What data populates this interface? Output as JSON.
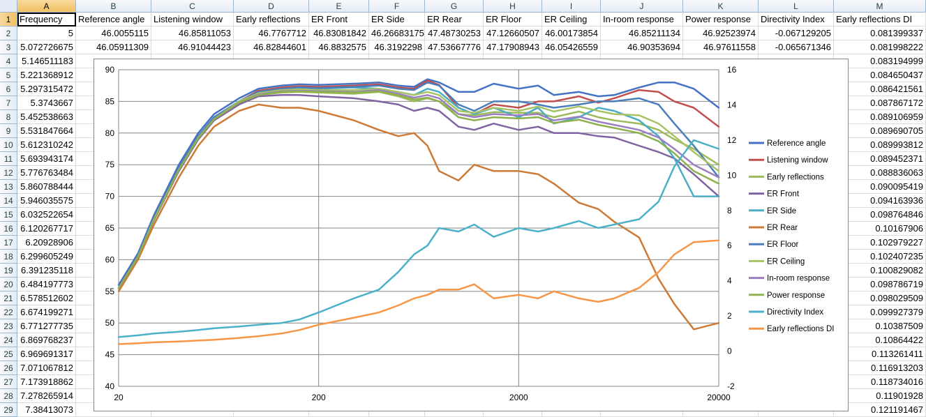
{
  "spreadsheet": {
    "columns": [
      "A",
      "B",
      "C",
      "D",
      "E",
      "F",
      "G",
      "H",
      "I",
      "J",
      "K",
      "L",
      "M"
    ],
    "active_column": "A",
    "active_row": 1,
    "rows": [
      {
        "n": "1",
        "cells": [
          "Frequency",
          "Reference angle",
          "Listening window",
          "Early reflections",
          "ER Front",
          "ER Side",
          "ER Rear",
          "ER Floor",
          "ER Ceiling",
          "In-room response",
          "Power response",
          "Directivity Index",
          "Early reflections DI"
        ]
      },
      {
        "n": "2",
        "cells": [
          "5",
          "46.0055115",
          "46.85811053",
          "46.7767712",
          "46.83081842",
          "46.26683175",
          "47.48730253",
          "47.12660507",
          "46.00173854",
          "46.85211134",
          "46.92523974",
          "-0.067129205",
          "0.081399337"
        ]
      },
      {
        "n": "3",
        "cells": [
          "5.072726675",
          "46.05911309",
          "46.91044423",
          "46.82844601",
          "46.8832575",
          "46.3192298",
          "47.53667776",
          "47.17908943",
          "46.05426559",
          "46.90353694",
          "46.97611558",
          "-0.065671346",
          "0.081998222"
        ]
      },
      {
        "n": "4",
        "cells": [
          "5.146511183",
          "",
          "",
          "",
          "",
          "",
          "",
          "",
          "",
          "",
          "",
          "",
          "0.083194999"
        ]
      },
      {
        "n": "5",
        "cells": [
          "5.221368912",
          "",
          "",
          "",
          "",
          "",
          "",
          "",
          "",
          "",
          "",
          "",
          "0.084650437"
        ]
      },
      {
        "n": "6",
        "cells": [
          "5.297315472",
          "",
          "",
          "",
          "",
          "",
          "",
          "",
          "",
          "",
          "",
          "",
          "0.086421561"
        ]
      },
      {
        "n": "7",
        "cells": [
          "5.3743667",
          "",
          "",
          "",
          "",
          "",
          "",
          "",
          "",
          "",
          "",
          "",
          "0.087867172"
        ]
      },
      {
        "n": "8",
        "cells": [
          "5.452538663",
          "",
          "",
          "",
          "",
          "",
          "",
          "",
          "",
          "",
          "",
          "",
          "0.089106959"
        ]
      },
      {
        "n": "9",
        "cells": [
          "5.531847664",
          "",
          "",
          "",
          "",
          "",
          "",
          "",
          "",
          "",
          "",
          "",
          "0.089690705"
        ]
      },
      {
        "n": "10",
        "cells": [
          "5.612310242",
          "",
          "",
          "",
          "",
          "",
          "",
          "",
          "",
          "",
          "",
          "",
          "0.089993812"
        ]
      },
      {
        "n": "11",
        "cells": [
          "5.693943174",
          "",
          "",
          "",
          "",
          "",
          "",
          "",
          "",
          "",
          "",
          "",
          "0.089452371"
        ]
      },
      {
        "n": "12",
        "cells": [
          "5.776763484",
          "",
          "",
          "",
          "",
          "",
          "",
          "",
          "",
          "",
          "",
          "",
          "0.088836063"
        ]
      },
      {
        "n": "13",
        "cells": [
          "5.860788444",
          "",
          "",
          "",
          "",
          "",
          "",
          "",
          "",
          "",
          "",
          "",
          "0.090095419"
        ]
      },
      {
        "n": "14",
        "cells": [
          "5.946035575",
          "",
          "",
          "",
          "",
          "",
          "",
          "",
          "",
          "",
          "",
          "",
          "0.094163936"
        ]
      },
      {
        "n": "15",
        "cells": [
          "6.032522654",
          "",
          "",
          "",
          "",
          "",
          "",
          "",
          "",
          "",
          "",
          "",
          "0.098764846"
        ]
      },
      {
        "n": "16",
        "cells": [
          "6.120267717",
          "",
          "",
          "",
          "",
          "",
          "",
          "",
          "",
          "",
          "",
          "",
          "0.10167906"
        ]
      },
      {
        "n": "17",
        "cells": [
          "6.20928906",
          "",
          "",
          "",
          "",
          "",
          "",
          "",
          "",
          "",
          "",
          "",
          "0.102979227"
        ]
      },
      {
        "n": "18",
        "cells": [
          "6.299605249",
          "",
          "",
          "",
          "",
          "",
          "",
          "",
          "",
          "",
          "",
          "",
          "0.102407235"
        ]
      },
      {
        "n": "19",
        "cells": [
          "6.391235118",
          "",
          "",
          "",
          "",
          "",
          "",
          "",
          "",
          "",
          "",
          "",
          "0.100829082"
        ]
      },
      {
        "n": "20",
        "cells": [
          "6.484197773",
          "",
          "",
          "",
          "",
          "",
          "",
          "",
          "",
          "",
          "",
          "",
          "0.098786719"
        ]
      },
      {
        "n": "21",
        "cells": [
          "6.578512602",
          "",
          "",
          "",
          "",
          "",
          "",
          "",
          "",
          "",
          "",
          "",
          "0.098029509"
        ]
      },
      {
        "n": "22",
        "cells": [
          "6.674199271",
          "",
          "",
          "",
          "",
          "",
          "",
          "",
          "",
          "",
          "",
          "",
          "0.099927379"
        ]
      },
      {
        "n": "23",
        "cells": [
          "6.771277735",
          "",
          "",
          "",
          "",
          "",
          "",
          "",
          "",
          "",
          "",
          "",
          "0.10387509"
        ]
      },
      {
        "n": "24",
        "cells": [
          "6.869768237",
          "",
          "",
          "",
          "",
          "",
          "",
          "",
          "",
          "",
          "",
          "",
          "0.10864422"
        ]
      },
      {
        "n": "25",
        "cells": [
          "6.969691317",
          "",
          "",
          "",
          "",
          "",
          "",
          "",
          "",
          "",
          "",
          "",
          "0.113261411"
        ]
      },
      {
        "n": "26",
        "cells": [
          "7.071067812",
          "",
          "",
          "",
          "",
          "",
          "",
          "",
          "",
          "",
          "",
          "",
          "0.116913203"
        ]
      },
      {
        "n": "27",
        "cells": [
          "7.173918862",
          "",
          "",
          "",
          "",
          "",
          "",
          "",
          "",
          "",
          "",
          "",
          "0.118734016"
        ]
      },
      {
        "n": "28",
        "cells": [
          "7.278265914",
          "",
          "",
          "",
          "",
          "",
          "",
          "",
          "",
          "",
          "",
          "",
          "0.11901928"
        ]
      },
      {
        "n": "29",
        "cells": [
          "7.38413073",
          "",
          "",
          "",
          "",
          "",
          "",
          "",
          "",
          "",
          "",
          "",
          "0.121191467"
        ]
      }
    ]
  },
  "chart_data": {
    "type": "line",
    "x_scale": "log",
    "xlim": [
      20,
      20000
    ],
    "x_ticks": [
      "20",
      "200",
      "2000",
      "20000"
    ],
    "ylim": [
      40,
      90
    ],
    "y_ticks": [
      "40",
      "45",
      "50",
      "55",
      "60",
      "65",
      "70",
      "75",
      "80",
      "85",
      "90"
    ],
    "y2lim": [
      -2,
      16
    ],
    "y2_ticks": [
      "-2",
      "0",
      "2",
      "4",
      "6",
      "8",
      "10",
      "12",
      "14",
      "16"
    ],
    "grid": true,
    "legend_position": "right",
    "x": [
      20,
      25,
      30,
      40,
      50,
      60,
      80,
      100,
      130,
      160,
      200,
      300,
      400,
      500,
      600,
      700,
      800,
      1000,
      1200,
      1500,
      2000,
      2500,
      3000,
      4000,
      5000,
      6000,
      8000,
      10000,
      12000,
      15000,
      20000
    ],
    "series": [
      {
        "name": "Reference angle",
        "color": "#4472c4",
        "axis": "left",
        "values": [
          56,
          61,
          67,
          75,
          80,
          83,
          85.5,
          87,
          87.5,
          87.7,
          87.6,
          87.8,
          88,
          87.5,
          87.3,
          88.5,
          88,
          86.5,
          86.5,
          87.8,
          87,
          87.5,
          86,
          86.5,
          85.8,
          86,
          87.2,
          88,
          88,
          87,
          84
        ]
      },
      {
        "name": "Listening window",
        "color": "#c0504d",
        "axis": "left",
        "values": [
          55.5,
          60.5,
          66.5,
          74.5,
          79.5,
          82.5,
          85,
          86.7,
          87.2,
          87.4,
          87.3,
          87.5,
          87.7,
          87.2,
          87,
          88.3,
          87.6,
          84,
          83,
          84.5,
          84,
          85,
          85,
          85.8,
          84.8,
          85.5,
          86.8,
          86.5,
          85,
          84,
          81
        ]
      },
      {
        "name": "Early reflections",
        "color": "#9bbb59",
        "axis": "left",
        "values": [
          55.5,
          60.5,
          66.2,
          74,
          79,
          82,
          84.8,
          86,
          86.4,
          86.5,
          86.4,
          86.2,
          86.5,
          85.8,
          85,
          85.5,
          85,
          83,
          82.8,
          83.3,
          83.2,
          83.2,
          82.5,
          83.4,
          82.5,
          82,
          81.5,
          80.5,
          79,
          77.5,
          75
        ]
      },
      {
        "name": "ER Front",
        "color": "#8064a2",
        "axis": "left",
        "values": [
          55.5,
          60.5,
          66.2,
          74,
          79,
          82,
          84.5,
          85.8,
          86,
          86,
          85.8,
          85.5,
          85,
          84.5,
          83.5,
          84,
          83.5,
          81,
          80.5,
          81.5,
          80.5,
          81,
          80,
          80,
          79.5,
          79.3,
          78,
          77,
          76,
          73.5,
          70
        ]
      },
      {
        "name": "ER Side",
        "color": "#4bacc6",
        "axis": "left",
        "values": [
          55.5,
          60.5,
          66.5,
          74.5,
          79.5,
          82.5,
          85,
          86.5,
          87,
          87.2,
          87,
          87.2,
          87,
          86.5,
          86,
          87,
          86.5,
          84,
          83,
          84,
          82.5,
          84,
          81.5,
          82.5,
          84,
          83.5,
          82,
          79.5,
          76,
          70,
          70
        ]
      },
      {
        "name": "ER Rear",
        "color": "#cc7a35",
        "axis": "left",
        "values": [
          55,
          60,
          65.5,
          73,
          78,
          81,
          83.5,
          84.5,
          84,
          84,
          83.5,
          82,
          80.5,
          79.5,
          80,
          78,
          74,
          72.5,
          75,
          74,
          74,
          73.5,
          72,
          69,
          68,
          66,
          63.5,
          57,
          53,
          49,
          50
        ]
      },
      {
        "name": "ER Floor",
        "color": "#4a7ebb",
        "axis": "left",
        "values": [
          55.5,
          60.5,
          66.5,
          74.5,
          79.5,
          82.5,
          85,
          86.5,
          87,
          87.2,
          87.1,
          87.3,
          87.5,
          87,
          86.8,
          88,
          87.5,
          84.5,
          83.5,
          85,
          85,
          84.5,
          84,
          84.5,
          85,
          85,
          85.5,
          84.5,
          81.5,
          78,
          73
        ]
      },
      {
        "name": "ER Ceiling",
        "color": "#a8c266",
        "axis": "left",
        "values": [
          55.5,
          60.5,
          66.4,
          74.2,
          79.3,
          82.2,
          85,
          86.3,
          86.8,
          86.9,
          86.8,
          86.8,
          87,
          86.5,
          86,
          86.5,
          86,
          83.5,
          83.2,
          84,
          83.5,
          84.2,
          83.4,
          84.2,
          83.5,
          83,
          82.8,
          81.5,
          79.5,
          77,
          74
        ]
      },
      {
        "name": "In-room response",
        "color": "#9b7fc2",
        "axis": "left",
        "values": [
          55.5,
          60.5,
          66.3,
          74.2,
          79.2,
          82.2,
          84.8,
          86.1,
          86.6,
          86.7,
          86.6,
          86.5,
          86.8,
          86.2,
          85.6,
          86,
          85.5,
          83,
          82.5,
          83,
          82.8,
          83,
          82,
          82.6,
          81.8,
          81.3,
          80.5,
          79.3,
          77.5,
          75,
          73
        ]
      },
      {
        "name": "Power response",
        "color": "#8eb04e",
        "axis": "left",
        "values": [
          55.5,
          60.5,
          66.3,
          74.2,
          79.2,
          82.2,
          84.8,
          86,
          86.5,
          86.6,
          86.5,
          86.4,
          86.6,
          86,
          85.3,
          85.6,
          85,
          82.5,
          82,
          82.5,
          82.3,
          82.5,
          81.6,
          82.1,
          81.3,
          80.8,
          80,
          78.7,
          76.8,
          74,
          72
        ]
      },
      {
        "name": "Directivity Index",
        "color": "#4bb1c9",
        "axis": "right",
        "values": [
          0.8,
          0.9,
          1.0,
          1.1,
          1.2,
          1.3,
          1.4,
          1.5,
          1.6,
          1.8,
          2.2,
          3.0,
          3.5,
          4.5,
          5.5,
          6.0,
          7.0,
          6.8,
          7.2,
          6.5,
          7.0,
          6.8,
          7.0,
          7.4,
          7.0,
          7.2,
          7.5,
          8.5,
          10.5,
          12,
          11.5
        ]
      },
      {
        "name": "Early reflections DI",
        "color": "#f79646",
        "axis": "right",
        "values": [
          0.4,
          0.45,
          0.5,
          0.55,
          0.6,
          0.65,
          0.75,
          0.85,
          1.0,
          1.2,
          1.5,
          1.9,
          2.2,
          2.6,
          3.0,
          3.2,
          3.5,
          3.5,
          3.8,
          3.0,
          3.2,
          3.0,
          3.4,
          3.0,
          2.8,
          3.0,
          3.6,
          4.5,
          5.5,
          6.2,
          6.3
        ]
      }
    ]
  }
}
